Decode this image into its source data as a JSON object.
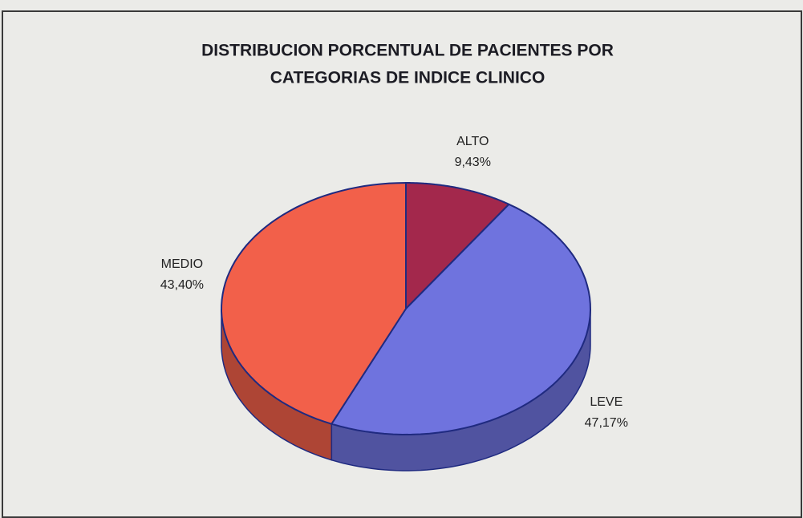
{
  "chart_data": {
    "type": "pie",
    "title": [
      "DISTRIBUCION PORCENTUAL DE PACIENTES POR",
      "CATEGORIAS DE INDICE CLINICO"
    ],
    "categories": [
      "ALTO",
      "LEVE",
      "MEDIO"
    ],
    "values": [
      9.43,
      47.17,
      43.4
    ],
    "value_labels": [
      "9,43%",
      "47,17%",
      "43,40%"
    ],
    "colors": [
      "#a3284c",
      "#6f73de",
      "#f2604a"
    ]
  }
}
